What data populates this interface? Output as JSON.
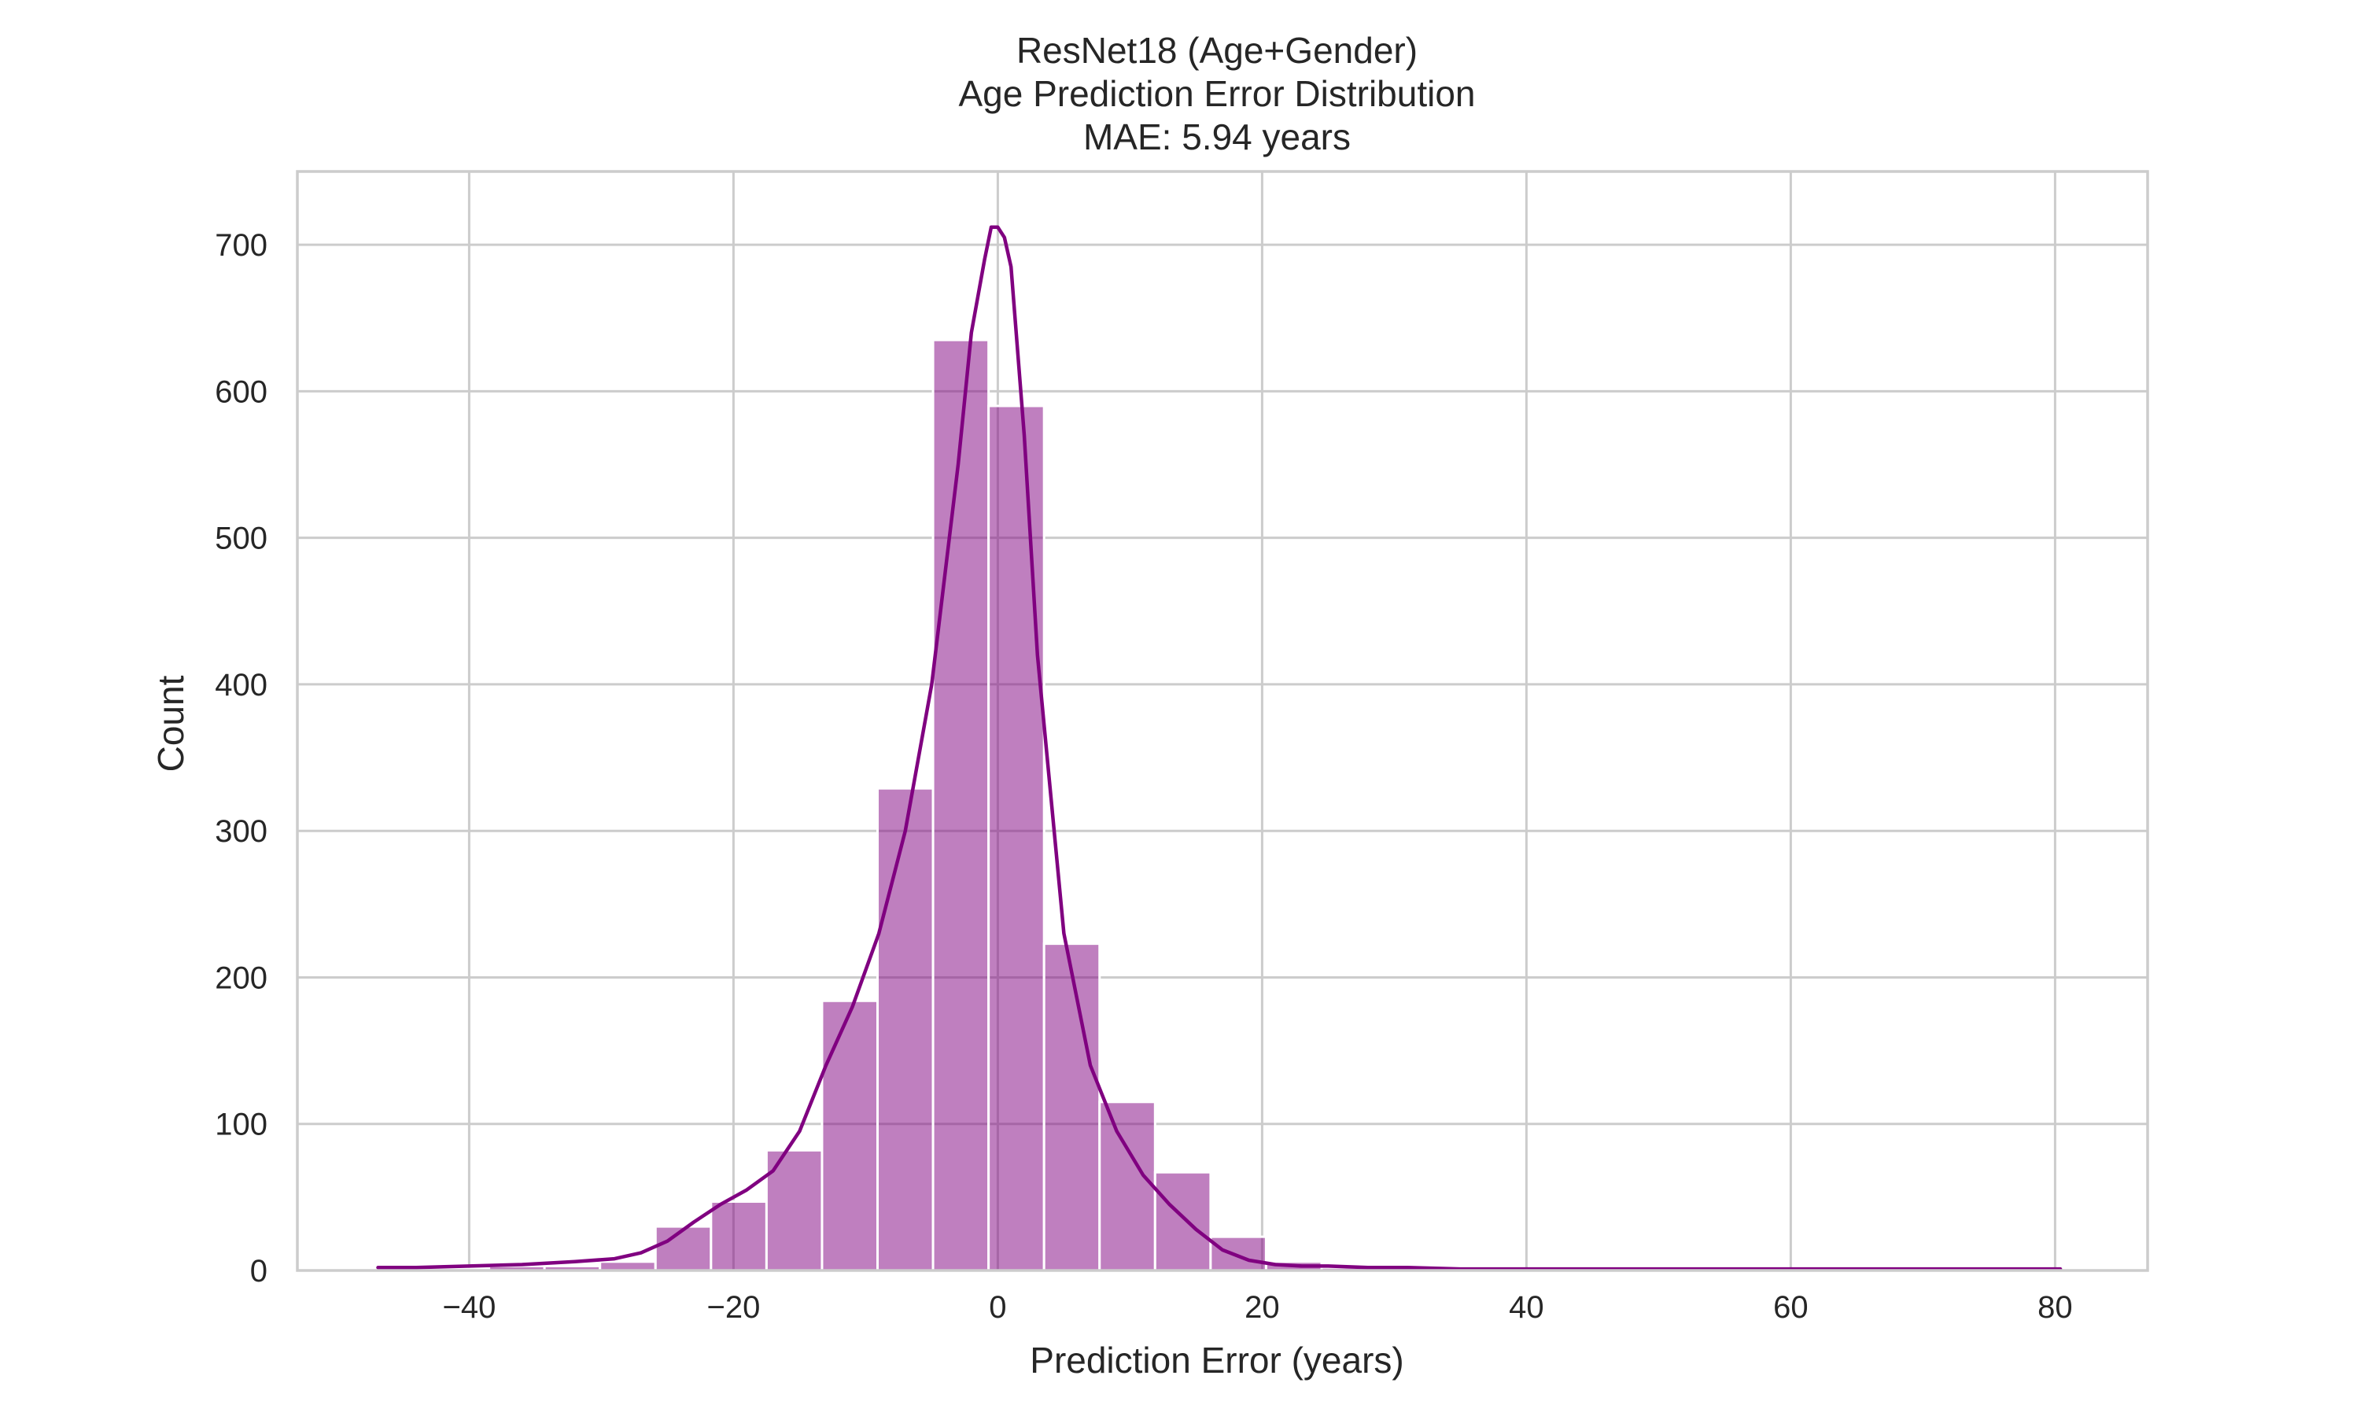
{
  "colors": {
    "series": "#800080",
    "grid": "#cccccc",
    "text": "#262626",
    "background": "#ffffff"
  },
  "chart_data": {
    "type": "bar",
    "subtype": "histogram-with-kde",
    "title_lines": [
      "ResNet18 (Age+Gender)",
      "Age Prediction Error Distribution",
      "MAE: 5.94 years"
    ],
    "xlabel": "Prediction Error (years)",
    "ylabel": "Count",
    "xlim": [
      -53,
      87
    ],
    "ylim": [
      0,
      750
    ],
    "xticks": [
      -40,
      -20,
      0,
      20,
      40,
      60,
      80
    ],
    "xtick_labels": [
      "−40",
      "−20",
      "0",
      "20",
      "40",
      "60",
      "80"
    ],
    "yticks": [
      0,
      100,
      200,
      300,
      400,
      500,
      600,
      700
    ],
    "ytick_labels": [
      "0",
      "100",
      "200",
      "300",
      "400",
      "500",
      "600",
      "700"
    ],
    "grid": true,
    "legend": "none",
    "bins": [
      {
        "x0": -46.9,
        "x1": -42.7,
        "count": 1
      },
      {
        "x0": -42.7,
        "x1": -38.5,
        "count": 1
      },
      {
        "x0": -38.5,
        "x1": -34.3,
        "count": 3
      },
      {
        "x0": -34.3,
        "x1": -30.1,
        "count": 3
      },
      {
        "x0": -30.1,
        "x1": -25.9,
        "count": 6
      },
      {
        "x0": -25.9,
        "x1": -21.7,
        "count": 30
      },
      {
        "x0": -21.7,
        "x1": -17.5,
        "count": 47
      },
      {
        "x0": -17.5,
        "x1": -13.3,
        "count": 82
      },
      {
        "x0": -13.3,
        "x1": -9.1,
        "count": 184
      },
      {
        "x0": -9.1,
        "x1": -4.9,
        "count": 329
      },
      {
        "x0": -4.9,
        "x1": -0.7,
        "count": 635
      },
      {
        "x0": -0.7,
        "x1": 3.5,
        "count": 590
      },
      {
        "x0": 3.5,
        "x1": 7.7,
        "count": 223
      },
      {
        "x0": 7.7,
        "x1": 11.9,
        "count": 115
      },
      {
        "x0": 11.9,
        "x1": 16.1,
        "count": 67
      },
      {
        "x0": 16.1,
        "x1": 20.3,
        "count": 23
      },
      {
        "x0": 20.3,
        "x1": 24.5,
        "count": 6
      },
      {
        "x0": 24.5,
        "x1": 28.7,
        "count": 2
      },
      {
        "x0": 28.7,
        "x1": 32.9,
        "count": 2
      },
      {
        "x0": 32.9,
        "x1": 37.1,
        "count": 1
      },
      {
        "x0": 37.1,
        "x1": 41.3,
        "count": 1
      },
      {
        "x0": 41.3,
        "x1": 45.5,
        "count": 1
      },
      {
        "x0": 45.5,
        "x1": 49.7,
        "count": 1
      },
      {
        "x0": 49.7,
        "x1": 53.9,
        "count": 1
      },
      {
        "x0": 53.9,
        "x1": 58.1,
        "count": 1
      },
      {
        "x0": 58.1,
        "x1": 62.3,
        "count": 1
      },
      {
        "x0": 62.3,
        "x1": 66.5,
        "count": 1
      },
      {
        "x0": 66.5,
        "x1": 70.7,
        "count": 1
      },
      {
        "x0": 70.7,
        "x1": 74.9,
        "count": 1
      },
      {
        "x0": 74.9,
        "x1": 79.1,
        "count": 1
      },
      {
        "x0": 79.1,
        "x1": 83.3,
        "count": 1
      }
    ],
    "kde": {
      "x": [
        -46.9,
        -44,
        -40,
        -36,
        -32,
        -29,
        -27,
        -25,
        -23,
        -21,
        -19,
        -17,
        -15,
        -13,
        -11,
        -9,
        -7,
        -5,
        -3,
        -2,
        -1,
        -0.5,
        0,
        0.5,
        1,
        2,
        3,
        5,
        7,
        9,
        11,
        13,
        15,
        17,
        19,
        21,
        23,
        25,
        28,
        31,
        35,
        40,
        45,
        50,
        55,
        60,
        65,
        70,
        75,
        80.4
      ],
      "y": [
        2,
        2,
        3,
        4,
        6,
        8,
        12,
        20,
        33,
        45,
        55,
        68,
        95,
        140,
        180,
        230,
        300,
        400,
        550,
        640,
        690,
        712,
        712,
        705,
        685,
        570,
        420,
        230,
        140,
        95,
        65,
        45,
        28,
        14,
        7,
        4,
        3,
        3,
        2,
        2,
        1,
        1,
        1,
        1,
        1,
        1,
        1,
        1,
        1,
        1
      ]
    }
  }
}
